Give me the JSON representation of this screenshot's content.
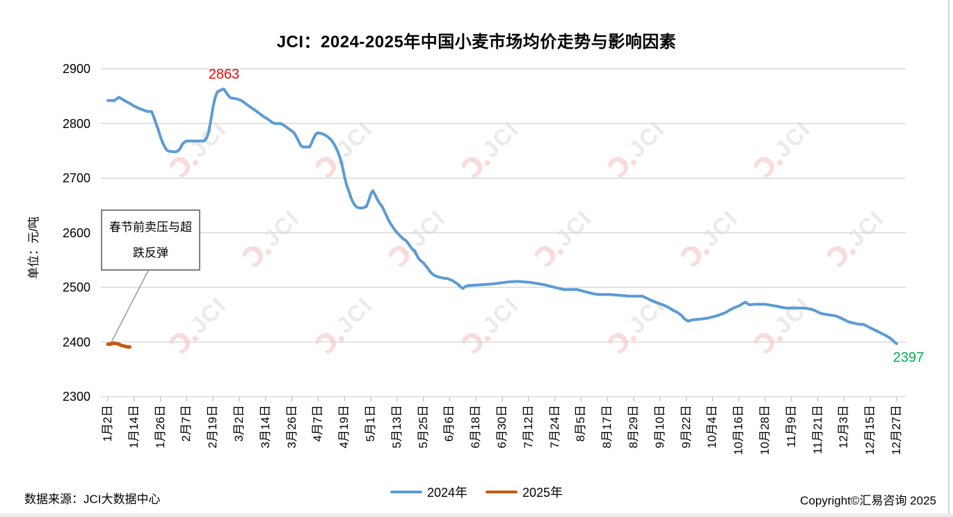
{
  "title": "JCI：2024-2025年中国小麦市场均价走势与影响因素",
  "watermark": {
    "logo_text": "JCI",
    "text_color": "#d9d9d9",
    "logo_color": "#f3bfbc",
    "accent_color": "#d9ecd9"
  },
  "footer": {
    "source": "数据来源：JCI大数据中心",
    "copyright": "Copyright©汇易咨询 2025"
  },
  "legend": [
    {
      "label": "2024年",
      "color": "#5b9bd5"
    },
    {
      "label": "2025年",
      "color": "#c55a11"
    }
  ],
  "chart_data": {
    "type": "line",
    "grid": true,
    "legend_position": "bottom",
    "y_axis": {
      "title": "单位：元/吨",
      "min": 2300,
      "max": 2900,
      "step": 100,
      "tick_labels": [
        "2900",
        "2800",
        "2700",
        "2600",
        "2500",
        "2400",
        "2300"
      ]
    },
    "x_axis": {
      "days_per_tick": 12,
      "total_days": 360,
      "tick_labels": [
        "1月2日",
        "1月14日",
        "1月26日",
        "2月7日",
        "2月19日",
        "3月2日",
        "3月14日",
        "3月26日",
        "4月7日",
        "4月19日",
        "5月1日",
        "5月13日",
        "5月25日",
        "6月6日",
        "6月18日",
        "6月30日",
        "7月12日",
        "7月24日",
        "8月5日",
        "8月17日",
        "8月29日",
        "9月10日",
        "9月22日",
        "10月4日",
        "10月16日",
        "10月28日",
        "11月9日",
        "11月21日",
        "12月3日",
        "12月15日",
        "12月27日"
      ]
    },
    "series": [
      {
        "name": "2024年",
        "color": "#5b9bd5",
        "width": 4,
        "points": [
          [
            0,
            2842
          ],
          [
            3,
            2842
          ],
          [
            5,
            2848
          ],
          [
            6,
            2846
          ],
          [
            8,
            2841
          ],
          [
            10,
            2837
          ],
          [
            12,
            2832
          ],
          [
            14,
            2828
          ],
          [
            16,
            2825
          ],
          [
            18,
            2822
          ],
          [
            20,
            2822
          ],
          [
            21,
            2812
          ],
          [
            22,
            2800
          ],
          [
            23,
            2789
          ],
          [
            24,
            2776
          ],
          [
            25,
            2765
          ],
          [
            26,
            2757
          ],
          [
            27,
            2751
          ],
          [
            28,
            2749
          ],
          [
            31,
            2748
          ],
          [
            32,
            2750
          ],
          [
            33,
            2754
          ],
          [
            34,
            2762
          ],
          [
            35,
            2766
          ],
          [
            36,
            2768
          ],
          [
            44,
            2768
          ],
          [
            45,
            2773
          ],
          [
            46,
            2784
          ],
          [
            47,
            2805
          ],
          [
            48,
            2830
          ],
          [
            49,
            2848
          ],
          [
            50,
            2858
          ],
          [
            52,
            2862
          ],
          [
            53,
            2863
          ],
          [
            54,
            2857
          ],
          [
            55,
            2851
          ],
          [
            56,
            2847
          ],
          [
            59,
            2845
          ],
          [
            61,
            2842
          ],
          [
            63,
            2836
          ],
          [
            65,
            2830
          ],
          [
            67,
            2825
          ],
          [
            69,
            2819
          ],
          [
            71,
            2813
          ],
          [
            73,
            2808
          ],
          [
            75,
            2802
          ],
          [
            76,
            2800
          ],
          [
            79,
            2800
          ],
          [
            81,
            2795
          ],
          [
            83,
            2789
          ],
          [
            85,
            2783
          ],
          [
            86,
            2776
          ],
          [
            87,
            2768
          ],
          [
            88,
            2760
          ],
          [
            89,
            2757
          ],
          [
            92,
            2757
          ],
          [
            93,
            2764
          ],
          [
            94,
            2774
          ],
          [
            95,
            2781
          ],
          [
            96,
            2783
          ],
          [
            98,
            2781
          ],
          [
            100,
            2777
          ],
          [
            102,
            2770
          ],
          [
            103,
            2764
          ],
          [
            104,
            2757
          ],
          [
            105,
            2748
          ],
          [
            106,
            2737
          ],
          [
            107,
            2722
          ],
          [
            108,
            2703
          ],
          [
            109,
            2687
          ],
          [
            110,
            2676
          ],
          [
            111,
            2664
          ],
          [
            112,
            2655
          ],
          [
            113,
            2649
          ],
          [
            114,
            2646
          ],
          [
            116,
            2645
          ],
          [
            118,
            2648
          ],
          [
            119,
            2658
          ],
          [
            120,
            2671
          ],
          [
            121,
            2677
          ],
          [
            122,
            2669
          ],
          [
            123,
            2661
          ],
          [
            124,
            2654
          ],
          [
            125,
            2649
          ],
          [
            126,
            2641
          ],
          [
            127,
            2633
          ],
          [
            128,
            2624
          ],
          [
            129,
            2617
          ],
          [
            130,
            2611
          ],
          [
            131,
            2605
          ],
          [
            132,
            2600
          ],
          [
            133,
            2596
          ],
          [
            134,
            2592
          ],
          [
            135,
            2588
          ],
          [
            136,
            2586
          ],
          [
            137,
            2581
          ],
          [
            138,
            2575
          ],
          [
            139,
            2570
          ],
          [
            140,
            2567
          ],
          [
            141,
            2559
          ],
          [
            142,
            2552
          ],
          [
            143,
            2548
          ],
          [
            144,
            2545
          ],
          [
            145,
            2540
          ],
          [
            146,
            2535
          ],
          [
            147,
            2529
          ],
          [
            148,
            2525
          ],
          [
            149,
            2522
          ],
          [
            151,
            2519
          ],
          [
            153,
            2517
          ],
          [
            155,
            2516
          ],
          [
            157,
            2513
          ],
          [
            159,
            2508
          ],
          [
            160,
            2505
          ],
          [
            161,
            2501
          ],
          [
            162,
            2498
          ],
          [
            163,
            2501
          ],
          [
            164,
            2503
          ],
          [
            167,
            2504
          ],
          [
            171,
            2505
          ],
          [
            175,
            2506
          ],
          [
            179,
            2508
          ],
          [
            183,
            2510
          ],
          [
            187,
            2511
          ],
          [
            190,
            2510
          ],
          [
            193,
            2509
          ],
          [
            196,
            2507
          ],
          [
            199,
            2505
          ],
          [
            202,
            2502
          ],
          [
            204,
            2500
          ],
          [
            206,
            2498
          ],
          [
            208,
            2496
          ],
          [
            214,
            2496
          ],
          [
            216,
            2494
          ],
          [
            218,
            2492
          ],
          [
            220,
            2490
          ],
          [
            222,
            2488
          ],
          [
            224,
            2487
          ],
          [
            229,
            2487
          ],
          [
            232,
            2486
          ],
          [
            235,
            2485
          ],
          [
            238,
            2484
          ],
          [
            244,
            2484
          ],
          [
            246,
            2480
          ],
          [
            248,
            2476
          ],
          [
            250,
            2473
          ],
          [
            252,
            2470
          ],
          [
            254,
            2467
          ],
          [
            256,
            2463
          ],
          [
            258,
            2458
          ],
          [
            260,
            2454
          ],
          [
            262,
            2448
          ],
          [
            263,
            2443
          ],
          [
            264,
            2440
          ],
          [
            265,
            2438
          ],
          [
            266,
            2440
          ],
          [
            268,
            2441
          ],
          [
            271,
            2442
          ],
          [
            274,
            2444
          ],
          [
            276,
            2446
          ],
          [
            278,
            2448
          ],
          [
            280,
            2451
          ],
          [
            282,
            2454
          ],
          [
            284,
            2459
          ],
          [
            286,
            2463
          ],
          [
            288,
            2466
          ],
          [
            290,
            2471
          ],
          [
            291,
            2473
          ],
          [
            292,
            2470
          ],
          [
            293,
            2468
          ],
          [
            295,
            2469
          ],
          [
            300,
            2469
          ],
          [
            303,
            2467
          ],
          [
            306,
            2465
          ],
          [
            308,
            2463
          ],
          [
            310,
            2462
          ],
          [
            318,
            2462
          ],
          [
            321,
            2460
          ],
          [
            323,
            2457
          ],
          [
            325,
            2453
          ],
          [
            327,
            2451
          ],
          [
            330,
            2449
          ],
          [
            332,
            2448
          ],
          [
            334,
            2445
          ],
          [
            336,
            2441
          ],
          [
            338,
            2437
          ],
          [
            340,
            2435
          ],
          [
            342,
            2433
          ],
          [
            345,
            2432
          ],
          [
            347,
            2428
          ],
          [
            349,
            2424
          ],
          [
            351,
            2420
          ],
          [
            353,
            2416
          ],
          [
            355,
            2412
          ],
          [
            357,
            2407
          ],
          [
            358,
            2404
          ],
          [
            359,
            2400
          ],
          [
            360,
            2397
          ]
        ]
      },
      {
        "name": "2025年",
        "color": "#c55a11",
        "width": 5,
        "points": [
          [
            0,
            2396
          ],
          [
            1,
            2396
          ],
          [
            2,
            2397
          ],
          [
            3,
            2398
          ],
          [
            4,
            2397
          ],
          [
            5,
            2396
          ],
          [
            6,
            2394
          ],
          [
            7,
            2393
          ],
          [
            8,
            2392
          ],
          [
            9,
            2391
          ],
          [
            10,
            2391
          ]
        ]
      }
    ],
    "data_labels": [
      {
        "text": "2863",
        "color": "#ff0000",
        "day": 53,
        "value": 2863
      },
      {
        "text": "2397",
        "color": "#00b050",
        "day": 360,
        "value": 2397
      }
    ],
    "annotation": {
      "line1": "春节前卖压与超",
      "line2": "跌反弹",
      "target_series": "2025年",
      "target_day": 1,
      "target_value": 2396
    }
  }
}
